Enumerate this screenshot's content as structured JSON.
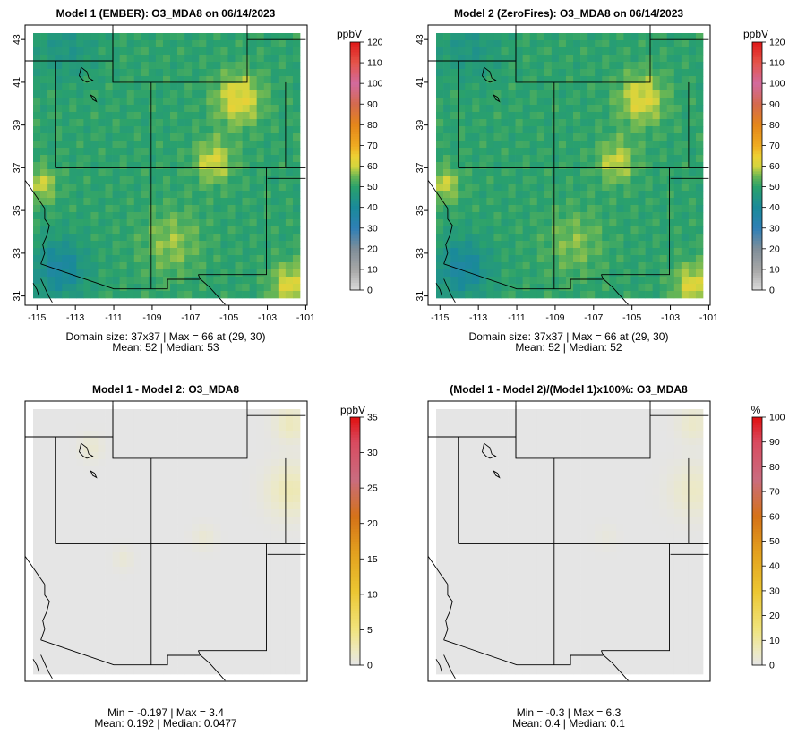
{
  "chart_data": [
    {
      "type": "heatmap",
      "title": "Model 1 (EMBER): O3_MDA8 on 06/14/2023",
      "colorbar_unit": "ppbV",
      "colorbar_ticks": [
        "0",
        "10",
        "20",
        "30",
        "40",
        "50",
        "60",
        "70",
        "80",
        "90",
        "100",
        "110",
        "120"
      ],
      "colorbar_range": [
        0,
        120
      ],
      "show_axes": true,
      "x_ticks": [
        "-115",
        "-113",
        "-111",
        "-109",
        "-107",
        "-105",
        "-103",
        "-101"
      ],
      "y_ticks": [
        "31",
        "33",
        "35",
        "37",
        "39",
        "41",
        "43"
      ],
      "lon_range": [
        -115.2,
        -101.3
      ],
      "lat_range": [
        30.9,
        43.3
      ],
      "grid_size": [
        37,
        37
      ],
      "base_value": 50,
      "hotspots": [
        {
          "lon": -104.5,
          "lat": 40.2,
          "value": 63,
          "radius": 1.2
        },
        {
          "lon": -105.8,
          "lat": 37.3,
          "value": 61,
          "radius": 1.0
        },
        {
          "lon": -114.8,
          "lat": 36.2,
          "value": 60,
          "radius": 0.8
        },
        {
          "lon": -101.8,
          "lat": 31.5,
          "value": 62,
          "radius": 1.0
        },
        {
          "lon": -113.8,
          "lat": 32.3,
          "value": 38,
          "radius": 1.3
        },
        {
          "lon": -113.5,
          "lat": 42.6,
          "value": 45,
          "radius": 1.5
        },
        {
          "lon": -108.0,
          "lat": 33.5,
          "value": 57,
          "radius": 1.5
        }
      ],
      "stats_line1": "Domain size: 37x37 | Max = 66 at (29, 30)",
      "stats_line2": "Mean: 52 |  Median: 53"
    },
    {
      "type": "heatmap",
      "title": "Model 2 (ZeroFires): O3_MDA8 on 06/14/2023",
      "colorbar_unit": "ppbV",
      "colorbar_ticks": [
        "0",
        "10",
        "20",
        "30",
        "40",
        "50",
        "60",
        "70",
        "80",
        "90",
        "100",
        "110",
        "120"
      ],
      "colorbar_range": [
        0,
        120
      ],
      "show_axes": true,
      "x_ticks": [
        "-115",
        "-113",
        "-111",
        "-109",
        "-107",
        "-105",
        "-103",
        "-101"
      ],
      "y_ticks": [
        "31",
        "33",
        "35",
        "37",
        "39",
        "41",
        "43"
      ],
      "lon_range": [
        -115.2,
        -101.3
      ],
      "lat_range": [
        30.9,
        43.3
      ],
      "grid_size": [
        37,
        37
      ],
      "base_value": 50,
      "hotspots": [
        {
          "lon": -104.5,
          "lat": 40.2,
          "value": 62,
          "radius": 1.2
        },
        {
          "lon": -105.8,
          "lat": 37.3,
          "value": 60,
          "radius": 1.0
        },
        {
          "lon": -114.8,
          "lat": 36.2,
          "value": 60,
          "radius": 0.8
        },
        {
          "lon": -101.8,
          "lat": 31.5,
          "value": 62,
          "radius": 1.0
        },
        {
          "lon": -113.8,
          "lat": 32.3,
          "value": 38,
          "radius": 1.3
        },
        {
          "lon": -113.5,
          "lat": 42.6,
          "value": 45,
          "radius": 1.5
        },
        {
          "lon": -108.0,
          "lat": 33.5,
          "value": 56,
          "radius": 1.5
        }
      ],
      "stats_line1": "Domain size: 37x37 | Max = 66 at (29, 30)",
      "stats_line2": "Mean: 52 |  Median: 52"
    },
    {
      "type": "heatmap",
      "title": "Model 1 - Model 2: O3_MDA8",
      "colorbar_unit": "ppbV",
      "colorbar_ticks": [
        "0",
        "5",
        "10",
        "15",
        "20",
        "25",
        "30",
        "35"
      ],
      "colorbar_range": [
        0,
        35
      ],
      "show_axes": false,
      "lon_range": [
        -115.2,
        -101.3
      ],
      "lat_range": [
        30.9,
        43.3
      ],
      "grid_size": [
        37,
        37
      ],
      "base_value": 0,
      "hotspots": [
        {
          "lon": -101.8,
          "lat": 39.5,
          "value": 2.6,
          "radius": 1.2
        },
        {
          "lon": -101.8,
          "lat": 42.6,
          "value": 2.2,
          "radius": 0.8
        },
        {
          "lon": -112.2,
          "lat": 41.5,
          "value": 1.2,
          "radius": 0.6
        },
        {
          "lon": -106.3,
          "lat": 37.3,
          "value": 1.0,
          "radius": 0.6
        },
        {
          "lon": -110.5,
          "lat": 36.3,
          "value": 0.9,
          "radius": 0.5
        }
      ],
      "stats_line1": "Min = -0.197 | Max = 3.4",
      "stats_line2": "Mean: 0.192 |  Median: 0.0477"
    },
    {
      "type": "heatmap",
      "title": "(Model 1 - Model 2)/(Model 1)x100%: O3_MDA8",
      "colorbar_unit": "%",
      "colorbar_ticks": [
        "0",
        "10",
        "20",
        "30",
        "40",
        "50",
        "60",
        "70",
        "80",
        "90",
        "100"
      ],
      "colorbar_range": [
        0,
        100
      ],
      "show_axes": false,
      "lon_range": [
        -115.2,
        -101.3
      ],
      "lat_range": [
        30.9,
        43.3
      ],
      "grid_size": [
        37,
        37
      ],
      "base_value": 0,
      "hotspots": [
        {
          "lon": -101.8,
          "lat": 39.5,
          "value": 5.0,
          "radius": 1.2
        },
        {
          "lon": -101.8,
          "lat": 42.6,
          "value": 4.5,
          "radius": 0.8
        },
        {
          "lon": -106.3,
          "lat": 37.3,
          "value": 1.5,
          "radius": 0.6
        }
      ],
      "stats_line1": "Min = -0.3 | Max = 6.3",
      "stats_line2": "Mean: 0.4 |  Median: 0.1"
    }
  ]
}
